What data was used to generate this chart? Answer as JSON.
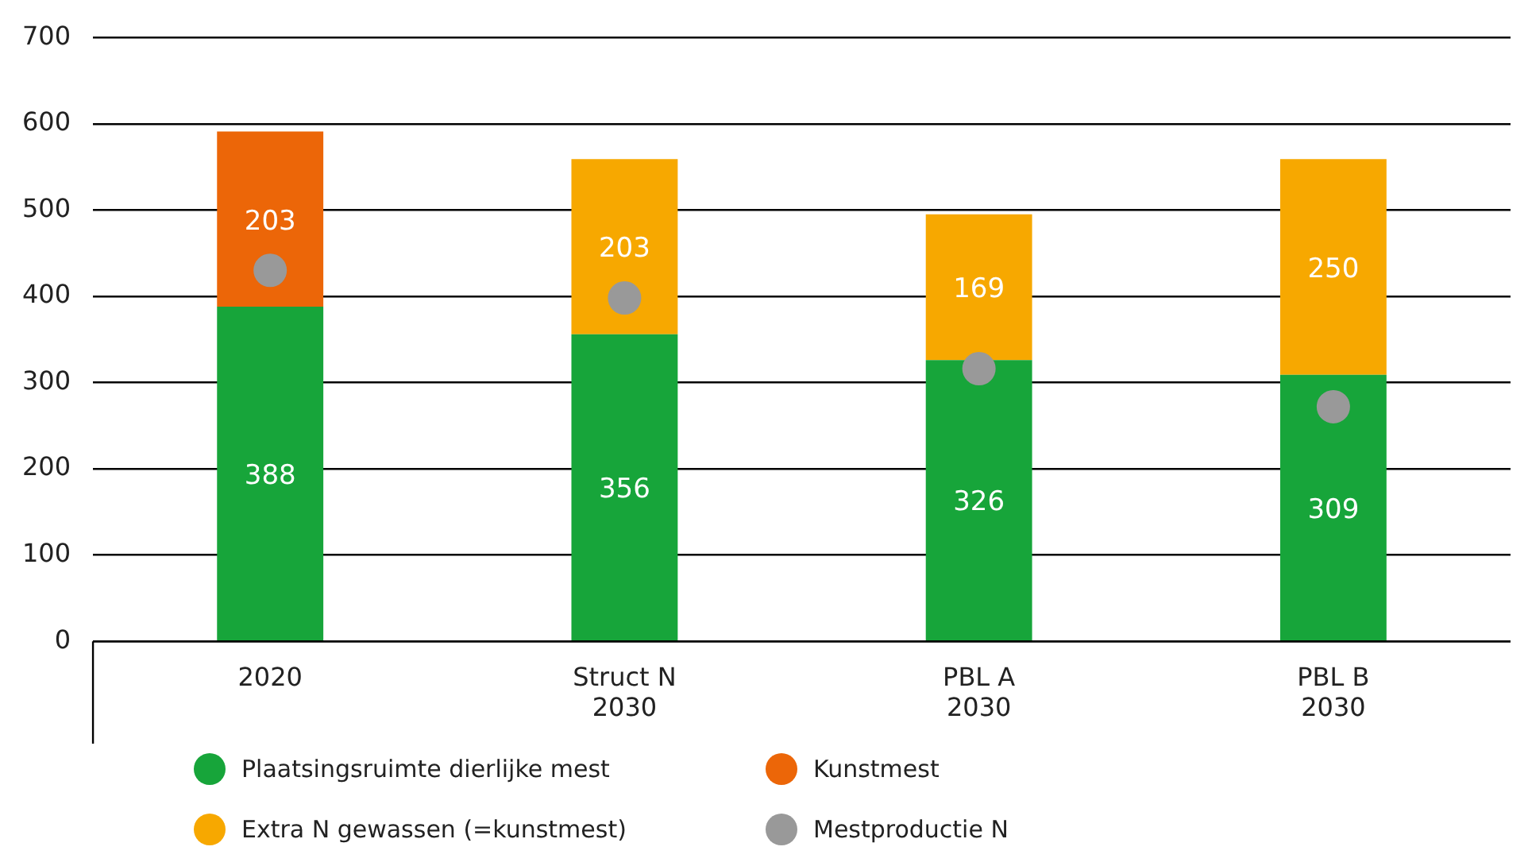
{
  "chart_data": {
    "type": "bar",
    "stacked": true,
    "categories": [
      "2020",
      "Struct N\n2030",
      "PBL A\n2030",
      "PBL B\n2030"
    ],
    "series": [
      {
        "name": "Plaatsingsruimte dierlijke mest",
        "color": "#17a53a",
        "values": [
          388,
          356,
          326,
          309
        ],
        "value_labels": [
          "388",
          "356",
          "326",
          "309"
        ]
      },
      {
        "name": "Kunstmest",
        "color": "#ec6608",
        "values": [
          203,
          null,
          null,
          null
        ],
        "value_labels": [
          "203",
          null,
          null,
          null
        ]
      },
      {
        "name": "Extra N gewassen (=kunstmest)",
        "color": "#f7a800",
        "values": [
          null,
          203,
          169,
          250
        ],
        "value_labels": [
          null,
          "203",
          "169",
          "250"
        ]
      },
      {
        "name": "Mestproductie N",
        "type": "scatter",
        "color": "#999999",
        "values": [
          430,
          398,
          316,
          272
        ]
      }
    ],
    "ylim": [
      0,
      700
    ],
    "yticks": [
      0,
      100,
      200,
      300,
      400,
      500,
      600,
      700
    ],
    "grid": "y",
    "legend": "bottom",
    "marker": "circle"
  }
}
